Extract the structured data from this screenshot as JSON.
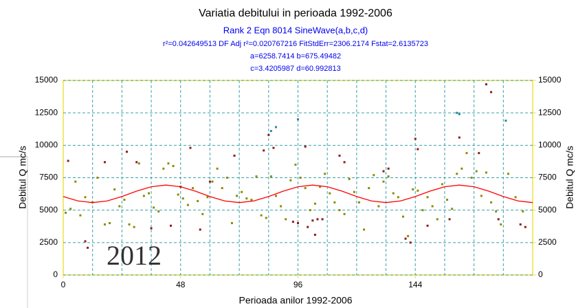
{
  "chart_data": {
    "type": "scatter",
    "title": "Variatia debitului in perioada 1992-2006",
    "subtitle": "Rank 2  Eqn 8014  SineWave(a,b,c,d)",
    "stats": "r²=0.042649513  DF Adj r²=0.020767216  FitStdErr=2306.2174  Fstat=2.6135723",
    "params1": "a=6258.7414 b=675.49482",
    "params2": "c=3.4205987 d=60.992813",
    "xlabel": "Perioada anilor 1992-2006",
    "ylabel": "Debitul Q  mc/s",
    "y2label": "Debitul Q  mc/s",
    "annotation": "2012",
    "xlim": [
      0,
      192
    ],
    "xticks": [
      0,
      48,
      96,
      144
    ],
    "xgrid": [
      12,
      24,
      36,
      48,
      60,
      72,
      84,
      96,
      108,
      120,
      132,
      144,
      156,
      168,
      180
    ],
    "ylim": [
      0,
      15000
    ],
    "yticks": [
      0,
      2500,
      5000,
      7500,
      10000,
      12500,
      15000
    ],
    "y2lim": [
      0,
      15000
    ],
    "y2ticks": [
      0,
      2500,
      5000,
      7500,
      10000,
      12500,
      15000
    ],
    "grid": true,
    "series": [
      {
        "color": "#8b8b00",
        "mode": "points",
        "x": [
          1,
          3,
          5,
          7,
          9,
          12,
          14,
          17,
          19,
          21,
          23,
          25,
          27,
          29,
          31,
          33,
          35,
          37,
          39,
          41,
          43,
          45,
          47,
          49,
          51,
          53,
          55,
          57,
          59,
          61,
          63,
          65,
          67,
          69,
          71,
          73,
          75,
          77,
          79,
          81,
          83,
          85,
          87,
          89,
          91,
          93,
          95,
          97,
          99,
          101,
          103,
          105,
          107,
          109,
          111,
          113,
          115,
          117,
          119,
          121,
          123,
          125,
          127,
          129,
          131,
          133,
          135,
          137,
          139,
          141,
          143,
          145,
          147,
          149,
          151,
          153,
          155,
          157,
          159,
          161,
          163,
          165,
          167,
          169,
          171,
          173,
          175,
          177,
          179,
          182,
          185,
          188
        ],
        "values": [
          4800,
          5100,
          7200,
          4600,
          6000,
          5600,
          7500,
          3900,
          4000,
          6600,
          5300,
          5800,
          3900,
          3700,
          8600,
          6100,
          6300,
          5200,
          4900,
          8200,
          8600,
          8400,
          6200,
          5900,
          5400,
          6700,
          5700,
          4700,
          6000,
          7200,
          8200,
          6700,
          7500,
          4000,
          6100,
          6400,
          5900,
          5800,
          7600,
          4600,
          4400,
          7600,
          6100,
          5300,
          4300,
          7300,
          8500,
          7500,
          6700,
          5000,
          5500,
          6800,
          7800,
          6300,
          5600,
          5000,
          4700,
          7400,
          6400,
          5600,
          3500,
          6700,
          7700,
          5300,
          7200,
          7600,
          6300,
          6000,
          4500,
          3000,
          6600,
          6500,
          5000,
          6000,
          5300,
          4300,
          7000,
          5800,
          5100,
          7800,
          8200,
          9400,
          7500,
          8000,
          6100,
          7900,
          5600,
          4900,
          3900,
          7800,
          6000,
          4900
        ]
      },
      {
        "color": "#8b1a1a",
        "mode": "points",
        "x": [
          2,
          9,
          10,
          17,
          26,
          30,
          36,
          44,
          48,
          52,
          56,
          60,
          70,
          82,
          84,
          86,
          94,
          96,
          99,
          100,
          102,
          103,
          104,
          106,
          113,
          115,
          131,
          133,
          140,
          142,
          144,
          145,
          149,
          158,
          162,
          170,
          173,
          175,
          178,
          187,
          189
        ],
        "values": [
          8800,
          2600,
          2100,
          8700,
          9500,
          8700,
          3600,
          3800,
          6800,
          9800,
          3500,
          7200,
          9200,
          9600,
          10800,
          9800,
          4100,
          4000,
          9900,
          3700,
          4200,
          3100,
          4300,
          4300,
          9200,
          8700,
          8000,
          8200,
          2800,
          2500,
          10500,
          9700,
          3800,
          4300,
          10600,
          9400,
          14700,
          14100,
          4300,
          3900,
          3700
        ]
      },
      {
        "color": "#2a8b9b",
        "mode": "points",
        "x": [
          85,
          87,
          96,
          161,
          162,
          181
        ],
        "values": [
          11100,
          11400,
          12000,
          12500,
          12400,
          11900
        ]
      },
      {
        "color": "#ff0000",
        "mode": "line",
        "x": [
          0,
          6,
          12,
          18,
          24,
          30,
          36,
          42,
          48,
          54,
          60,
          66,
          72,
          78,
          84,
          90,
          96,
          102,
          108,
          114,
          120,
          126,
          132,
          138,
          144,
          150,
          156,
          162,
          168,
          174,
          180,
          186,
          192
        ],
        "values": [
          6050,
          5712,
          5583,
          5712,
          6050,
          6467,
          6804,
          6933,
          6804,
          6467,
          6050,
          5712,
          5583,
          5712,
          6050,
          6467,
          6804,
          6933,
          6804,
          6467,
          6050,
          5712,
          5583,
          5712,
          6050,
          6467,
          6804,
          6933,
          6804,
          6467,
          6050,
          5712,
          5583
        ]
      }
    ]
  }
}
